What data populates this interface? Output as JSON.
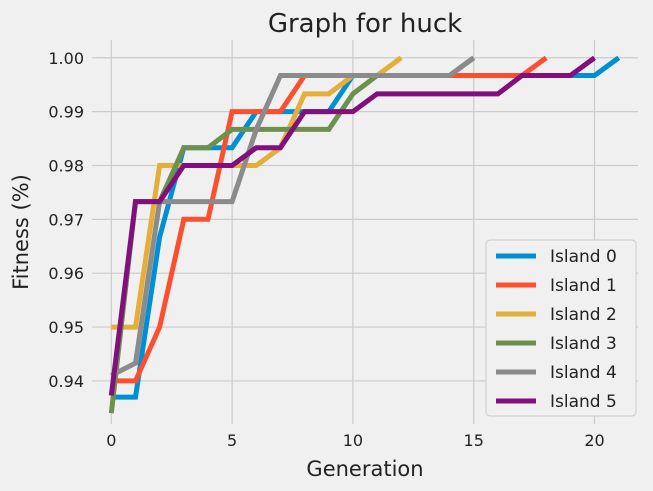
{
  "chart_data": {
    "type": "line",
    "title": "Graph for huck",
    "xlabel": "Generation",
    "ylabel": "Fitness (%)",
    "xlim": [
      -0.8,
      21.8
    ],
    "ylim": [
      0.932,
      1.0033
    ],
    "xticks": [
      0,
      5,
      10,
      15,
      20
    ],
    "yticks": [
      0.94,
      0.95,
      0.96,
      0.97,
      0.98,
      0.99,
      1.0
    ],
    "ytick_labels": [
      "0.94",
      "0.95",
      "0.96",
      "0.97",
      "0.98",
      "0.99",
      "1.00"
    ],
    "grid": true,
    "legend_position": "lower-right",
    "series": [
      {
        "name": "Island 0",
        "color": "#008fd5",
        "x": [
          0,
          1,
          2,
          3,
          4,
          5,
          6,
          7,
          8,
          9,
          10,
          11,
          12,
          13,
          14,
          15,
          16,
          17,
          18,
          19,
          20,
          21
        ],
        "y": [
          0.937,
          0.937,
          0.9667,
          0.9833,
          0.9833,
          0.9833,
          0.99,
          0.99,
          0.99,
          0.99,
          0.9967,
          0.9967,
          0.9967,
          0.9967,
          0.9967,
          0.9967,
          0.9967,
          0.9967,
          0.9967,
          0.9967,
          0.9967,
          1.0
        ]
      },
      {
        "name": "Island 1",
        "color": "#fc4f30",
        "x": [
          0,
          1,
          2,
          3,
          4,
          5,
          6,
          7,
          8,
          9,
          10,
          11,
          12,
          13,
          14,
          15,
          16,
          17,
          18
        ],
        "y": [
          0.94,
          0.94,
          0.95,
          0.97,
          0.97,
          0.99,
          0.99,
          0.99,
          0.9967,
          0.9967,
          0.9967,
          0.9967,
          0.9967,
          0.9967,
          0.9967,
          0.9967,
          0.9967,
          0.9967,
          1.0
        ]
      },
      {
        "name": "Island 2",
        "color": "#e5ae38",
        "x": [
          0,
          1,
          2,
          3,
          4,
          5,
          6,
          7,
          8,
          9,
          10,
          11,
          12
        ],
        "y": [
          0.95,
          0.95,
          0.98,
          0.98,
          0.98,
          0.98,
          0.98,
          0.9833,
          0.9933,
          0.9933,
          0.9967,
          0.9967,
          1.0
        ]
      },
      {
        "name": "Island 3",
        "color": "#6d904f",
        "x": [
          0,
          1,
          2,
          3,
          4,
          5,
          6,
          7,
          8,
          9,
          10,
          11,
          12,
          13,
          14,
          15
        ],
        "y": [
          0.934,
          0.9733,
          0.9733,
          0.9833,
          0.9833,
          0.9867,
          0.9867,
          0.9867,
          0.9867,
          0.9867,
          0.9933,
          0.9967,
          0.9967,
          0.9967,
          0.9967,
          1.0
        ]
      },
      {
        "name": "Island 4",
        "color": "#8b8b8b",
        "x": [
          0,
          1,
          2,
          3,
          4,
          5,
          6,
          7,
          8,
          9,
          10,
          11,
          12,
          13,
          14,
          15
        ],
        "y": [
          0.941,
          0.9433,
          0.9733,
          0.9733,
          0.9733,
          0.9733,
          0.9867,
          0.9967,
          0.9967,
          0.9967,
          0.9967,
          0.9967,
          0.9967,
          0.9967,
          0.9967,
          1.0
        ]
      },
      {
        "name": "Island 5",
        "color": "#810f7c",
        "x": [
          0,
          1,
          2,
          3,
          4,
          5,
          6,
          7,
          8,
          9,
          10,
          11,
          12,
          13,
          14,
          15,
          16,
          17,
          18,
          19,
          20
        ],
        "y": [
          0.9373,
          0.9733,
          0.9733,
          0.98,
          0.98,
          0.98,
          0.9833,
          0.9833,
          0.99,
          0.99,
          0.99,
          0.9933,
          0.9933,
          0.9933,
          0.9933,
          0.9933,
          0.9933,
          0.9967,
          0.9967,
          0.9967,
          1.0
        ]
      }
    ]
  }
}
